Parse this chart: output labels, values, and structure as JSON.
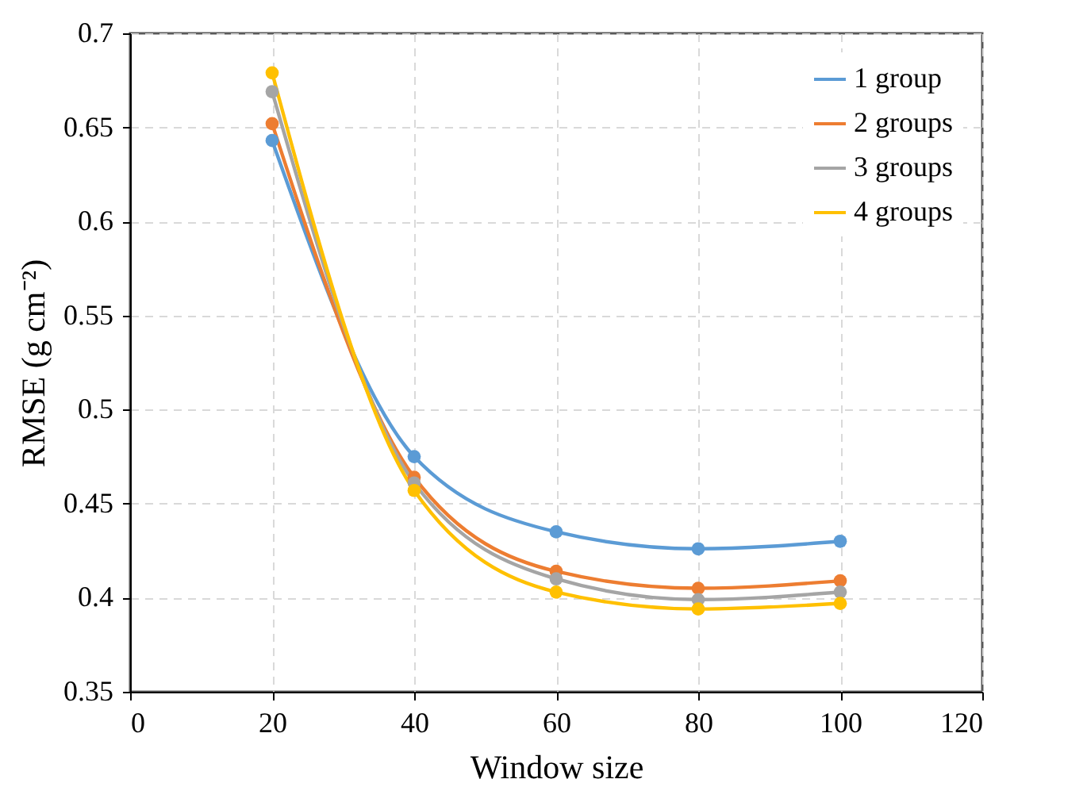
{
  "chart_data": {
    "type": "line",
    "xlabel": "Window size",
    "ylabel": "RMSE (g cm⁻²)",
    "x": [
      20,
      40,
      60,
      80,
      100
    ],
    "series": [
      {
        "name": "1 group",
        "color": "#5b9bd5",
        "values": [
          0.643,
          0.475,
          0.435,
          0.426,
          0.43
        ]
      },
      {
        "name": "2 groups",
        "color": "#ed7d31",
        "values": [
          0.652,
          0.464,
          0.414,
          0.405,
          0.409
        ]
      },
      {
        "name": "3 groups",
        "color": "#a5a5a5",
        "values": [
          0.669,
          0.461,
          0.41,
          0.399,
          0.403
        ]
      },
      {
        "name": "4 groups",
        "color": "#ffc000",
        "values": [
          0.679,
          0.457,
          0.403,
          0.394,
          0.397
        ]
      }
    ],
    "xlim": [
      0,
      120
    ],
    "xticks": [
      0,
      20,
      40,
      60,
      80,
      100,
      120
    ],
    "ylim": [
      0.35,
      0.7
    ],
    "yticks": [
      0.35,
      0.4,
      0.45,
      0.5,
      0.55,
      0.6,
      0.65,
      0.7
    ],
    "grid": true,
    "legend": "top right",
    "marker": "circle",
    "line_style": "solid"
  }
}
